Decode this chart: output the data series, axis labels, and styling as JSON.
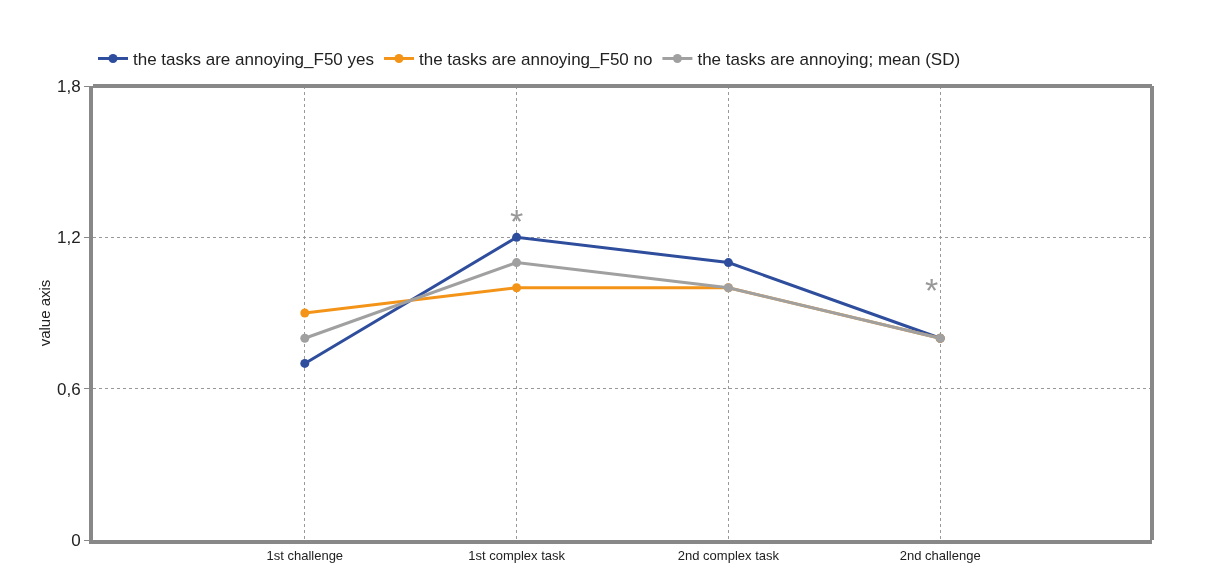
{
  "chart_data": {
    "type": "line",
    "ylabel": "value axis",
    "categories": [
      "1st challenge",
      "1st complex task",
      "2nd complex task",
      "2nd challenge"
    ],
    "series": [
      {
        "name": "the tasks are annoying_F50 yes",
        "color": "#2e4d9c",
        "values": [
          0.7,
          1.2,
          1.1,
          0.8
        ]
      },
      {
        "name": "the tasks are annoying_F50 no",
        "color": "#f39419",
        "values": [
          0.9,
          1.0,
          1.0,
          0.8
        ]
      },
      {
        "name": "the tasks are annoying; mean (SD)",
        "color": "#a0a0a0",
        "values": [
          0.8,
          1.1,
          1.0,
          0.8
        ]
      }
    ],
    "ylim": [
      0,
      1.8
    ],
    "yticks": [
      0,
      {
        "value": 0.6,
        "label": "0,6"
      },
      {
        "value": 1.2,
        "label": "1,2"
      },
      {
        "value": 1.8,
        "label": "1,8"
      }
    ],
    "annotations": [
      "*",
      "*"
    ],
    "grid": true,
    "legend": "top",
    "marker": "circle",
    "line_style": "solid"
  }
}
